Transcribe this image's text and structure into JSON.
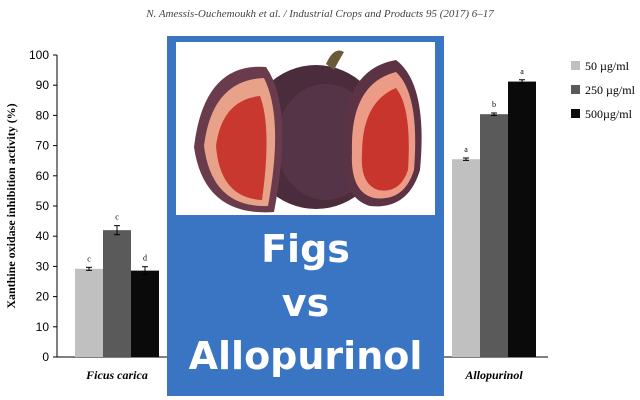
{
  "header": {
    "citation": "N. Amessis-Ouchemoukh et al. / Industrial Crops and Products 95 (2017) 6–17"
  },
  "overlay": {
    "line1": "Figs",
    "line2": "vs",
    "line3": "Allopurinol",
    "background_color": "#3a75c4",
    "text_color": "#ffffff",
    "photo_icon": "fig-fruit-photo"
  },
  "chart_data": {
    "type": "bar",
    "title": "",
    "ylabel": "Xanthine oxidase inhibition activity (%)",
    "xlabel": "",
    "ylim": [
      0,
      100
    ],
    "yticks": [
      "0",
      "10",
      "20",
      "30",
      "40",
      "50",
      "60",
      "70",
      "80",
      "90",
      "100"
    ],
    "categories": [
      "Ficus carica",
      "Allopurinol"
    ],
    "series": [
      {
        "name": "50 µg/ml",
        "values": [
          29.2,
          65.5
        ],
        "errors": [
          0.5,
          0.4
        ],
        "letters": [
          "c",
          "a"
        ],
        "color": "#c0c0c0"
      },
      {
        "name": "250 µg/ml",
        "values": [
          42.0,
          80.4
        ],
        "errors": [
          1.5,
          0.4
        ],
        "letters": [
          "c",
          "b"
        ],
        "color": "#5a5a5a"
      },
      {
        "name": "500µg/ml",
        "values": [
          28.6,
          91.2
        ],
        "errors": [
          1.3,
          0.6
        ],
        "letters": [
          "d",
          "a"
        ],
        "color": "#0a0a0a"
      }
    ],
    "legend_position": "right"
  }
}
